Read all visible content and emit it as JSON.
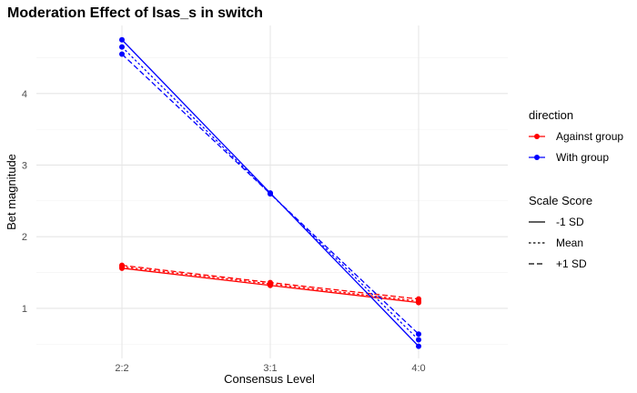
{
  "chart_data": {
    "type": "line",
    "title": "Moderation Effect of lsas_s in switch",
    "xlabel": "Consensus Level",
    "ylabel": "Bet magnitude",
    "categories": [
      "2:2",
      "3:1",
      "4:0"
    ],
    "ylim": [
      0.3,
      4.95
    ],
    "yticks": [
      1,
      2,
      3,
      4
    ],
    "grid": true,
    "series": [
      {
        "direction": "Against group",
        "scale": "-1 SD",
        "values": [
          1.56,
          1.32,
          1.08
        ]
      },
      {
        "direction": "Against group",
        "scale": "Mean",
        "values": [
          1.58,
          1.34,
          1.1
        ]
      },
      {
        "direction": "Against group",
        "scale": "+1 SD",
        "values": [
          1.6,
          1.36,
          1.13
        ]
      },
      {
        "direction": "With group",
        "scale": "-1 SD",
        "values": [
          4.75,
          2.61,
          0.47
        ]
      },
      {
        "direction": "With group",
        "scale": "Mean",
        "values": [
          4.65,
          2.6,
          0.56
        ]
      },
      {
        "direction": "With group",
        "scale": "+1 SD",
        "values": [
          4.55,
          2.6,
          0.64
        ]
      }
    ],
    "legends": [
      {
        "title": "direction",
        "entries": [
          {
            "label": "Against group",
            "color": "#ff0000"
          },
          {
            "label": "With group",
            "color": "#0000ff"
          }
        ]
      },
      {
        "title": "Scale Score",
        "entries": [
          {
            "label": "-1 SD",
            "linetype": "solid"
          },
          {
            "label": "Mean",
            "linetype": "dotted"
          },
          {
            "label": "+1 SD",
            "linetype": "dashed"
          }
        ]
      }
    ],
    "legend_position": "right"
  }
}
